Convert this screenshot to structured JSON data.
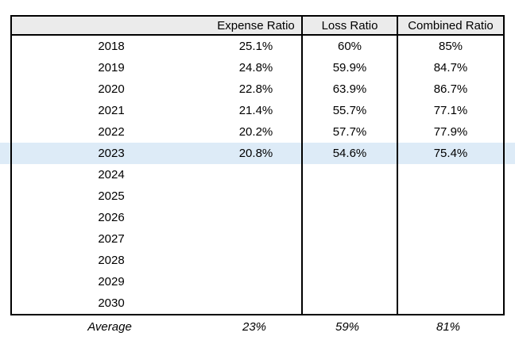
{
  "header": {
    "col0": "",
    "col1": "Expense Ratio",
    "col2": "Loss Ratio",
    "col3": "Combined Ratio"
  },
  "rows": [
    {
      "year": "2018",
      "expense": "25.1%",
      "loss": "60%",
      "combined": "85%"
    },
    {
      "year": "2019",
      "expense": "24.8%",
      "loss": "59.9%",
      "combined": "84.7%"
    },
    {
      "year": "2020",
      "expense": "22.8%",
      "loss": "63.9%",
      "combined": "86.7%"
    },
    {
      "year": "2021",
      "expense": "21.4%",
      "loss": "55.7%",
      "combined": "77.1%"
    },
    {
      "year": "2022",
      "expense": "20.2%",
      "loss": "57.7%",
      "combined": "77.9%"
    },
    {
      "year": "2023",
      "expense": "20.8%",
      "loss": "54.6%",
      "combined": "75.4%"
    },
    {
      "year": "2024",
      "expense": "",
      "loss": "",
      "combined": ""
    },
    {
      "year": "2025",
      "expense": "",
      "loss": "",
      "combined": ""
    },
    {
      "year": "2026",
      "expense": "",
      "loss": "",
      "combined": ""
    },
    {
      "year": "2027",
      "expense": "",
      "loss": "",
      "combined": ""
    },
    {
      "year": "2028",
      "expense": "",
      "loss": "",
      "combined": ""
    },
    {
      "year": "2029",
      "expense": "",
      "loss": "",
      "combined": ""
    },
    {
      "year": "2030",
      "expense": "",
      "loss": "",
      "combined": ""
    }
  ],
  "average": {
    "label": "Average",
    "expense": "23%",
    "loss": "59%",
    "combined": "81%"
  },
  "highlight": {
    "year": "2023",
    "color": "#ddebf7"
  },
  "colors": {
    "header_bg": "#ebebeb",
    "border": "#000000",
    "highlight": "#ddebf7",
    "background": "#ffffff"
  },
  "chart_data": {
    "type": "table",
    "columns": [
      "",
      "Expense Ratio",
      "Loss Ratio",
      "Combined Ratio"
    ],
    "rows": [
      [
        2018,
        25.1,
        60.0,
        85.0
      ],
      [
        2019,
        24.8,
        59.9,
        84.7
      ],
      [
        2020,
        22.8,
        63.9,
        86.7
      ],
      [
        2021,
        21.4,
        55.7,
        77.1
      ],
      [
        2022,
        20.2,
        57.7,
        77.9
      ],
      [
        2023,
        20.8,
        54.6,
        75.4
      ],
      [
        2024,
        null,
        null,
        null
      ],
      [
        2025,
        null,
        null,
        null
      ],
      [
        2026,
        null,
        null,
        null
      ],
      [
        2027,
        null,
        null,
        null
      ],
      [
        2028,
        null,
        null,
        null
      ],
      [
        2029,
        null,
        null,
        null
      ],
      [
        2030,
        null,
        null,
        null
      ]
    ],
    "units": "%",
    "highlighted_row": 2023,
    "average": {
      "expense_ratio": 23,
      "loss_ratio": 59,
      "combined_ratio": 81
    }
  }
}
